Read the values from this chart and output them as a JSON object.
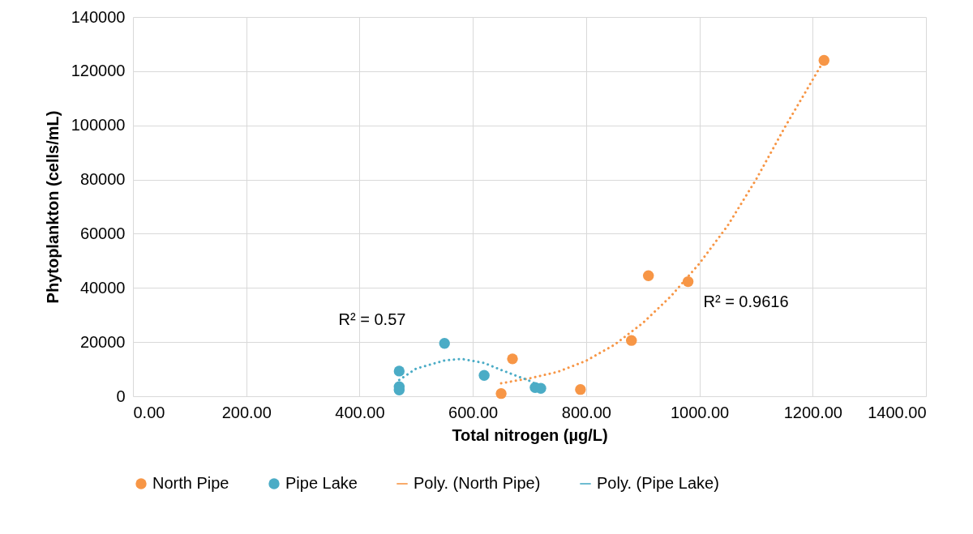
{
  "chart_data": {
    "type": "scatter",
    "xlabel": "Total nitrogen (µg/L)",
    "ylabel": "Phytoplankton (cells/mL)",
    "series": [
      {
        "name": "North Pipe",
        "color": "#f79646",
        "x": [
          650,
          670,
          790,
          880,
          910,
          980,
          1220
        ],
        "values": [
          1000,
          13800,
          2500,
          20600,
          44500,
          42300,
          124000
        ]
      },
      {
        "name": "Pipe Lake",
        "color": "#4bacc6",
        "x": [
          470,
          470,
          470,
          550,
          620,
          710,
          720
        ],
        "values": [
          9300,
          3500,
          2300,
          19500,
          7700,
          3200,
          2900
        ]
      },
      {
        "name": "Poly. (North Pipe)",
        "color": "#f79646",
        "type": "line",
        "line_style": "dotted",
        "marker": "none",
        "x": [
          650,
          700,
          750,
          800,
          850,
          900,
          950,
          1000,
          1050,
          1100,
          1150,
          1220
        ],
        "values": [
          4800,
          6600,
          9000,
          13100,
          19000,
          27000,
          37000,
          49000,
          63000,
          80000,
          99000,
          124000
        ]
      },
      {
        "name": "Poly. (Pipe Lake)",
        "color": "#4bacc6",
        "type": "line",
        "line_style": "dotted",
        "marker": "none",
        "x": [
          470,
          500,
          550,
          580,
          620,
          650,
          700,
          720
        ],
        "values": [
          6000,
          10200,
          13200,
          13800,
          12300,
          9700,
          5700,
          3500
        ]
      }
    ],
    "xlim": [
      0,
      1400
    ],
    "xticks": [
      {
        "value": 0,
        "label": "0.00"
      },
      {
        "value": 200,
        "label": "200.00"
      },
      {
        "value": 400,
        "label": "400.00"
      },
      {
        "value": 600,
        "label": "600.00"
      },
      {
        "value": 800,
        "label": "800.00"
      },
      {
        "value": 1000,
        "label": "1000.00"
      },
      {
        "value": 1200,
        "label": "1200.00"
      },
      {
        "value": 1400,
        "label": "1400.00"
      }
    ],
    "ylim": [
      0,
      140000
    ],
    "yticks": [
      0,
      20000,
      40000,
      60000,
      80000,
      100000,
      120000,
      140000
    ],
    "annotations": [
      "R² = 0.57",
      "R² = 0.9616"
    ],
    "grid": true,
    "legend": "bottom",
    "marker": "circle"
  }
}
